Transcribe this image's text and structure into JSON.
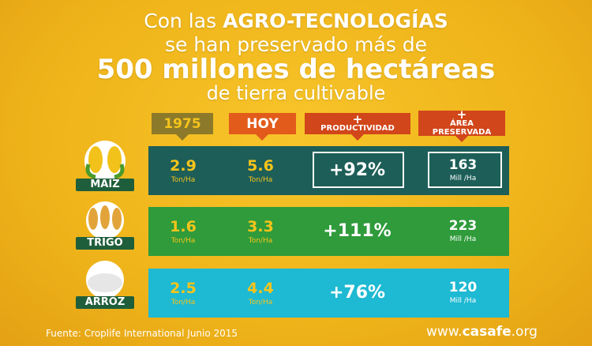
{
  "title": {
    "line1_prefix": "Con las",
    "line1_bold": "AGRO-TECNOLOGÍAS",
    "line2": "se han preservado más de",
    "line3": "500 millones de hectáreas",
    "line4": "de tierra cultivable"
  },
  "headers": [
    {
      "plus": null,
      "label": "1975"
    },
    {
      "plus": null,
      "label": "HOY"
    },
    {
      "plus": "+",
      "label": "PRODUCTIVIDAD"
    },
    {
      "plus": "+",
      "label": "ÁREA PRESERVADA"
    }
  ],
  "rows": [
    {
      "crop": "MAIZ",
      "v1975": "2.9",
      "unit1975": "Ton/Ha",
      "hoy": "5.6",
      "unit_hoy": "Ton/Ha",
      "productividad": "+92%",
      "area": "163",
      "area_unit": "Mill /Ha"
    },
    {
      "crop": "TRIGO",
      "v1975": "1.6",
      "unit1975": "Ton/Ha",
      "hoy": "3.3",
      "unit_hoy": "Ton/Ha",
      "productividad": "+111%",
      "area": "223",
      "area_unit": "Mill /Ha"
    },
    {
      "crop": "ARROZ",
      "v1975": "2.5",
      "unit1975": "Ton/Ha",
      "hoy": "4.4",
      "unit_hoy": "Ton/Ha",
      "productividad": "+76%",
      "area": "120",
      "area_unit": "Mill /Ha"
    }
  ],
  "footer": {
    "source": "Fuente: Croplife International Junio 2015",
    "site_prefix": "www.",
    "site_bold": "casafe",
    "site_suffix": ".org"
  }
}
